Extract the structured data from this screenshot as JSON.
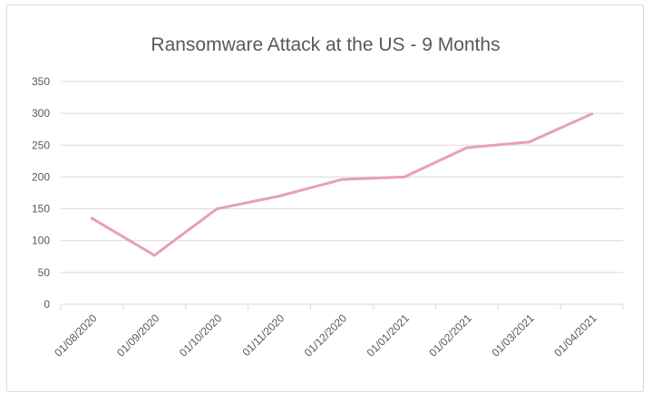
{
  "chart_data": {
    "type": "line",
    "title": "Ransomware Attack at the US - 9 Months",
    "xlabel": "",
    "ylabel": "",
    "categories": [
      "01/08/2020",
      "01/09/2020",
      "01/10/2020",
      "01/11/2020",
      "01/12/2020",
      "01/01/2021",
      "01/02/2021",
      "01/03/2021",
      "01/04/2021"
    ],
    "series": [
      {
        "values": [
          135,
          77,
          150,
          170,
          196,
          200,
          246,
          255,
          299
        ],
        "color": "#e8a0b4"
      }
    ],
    "ylim": [
      0,
      350
    ],
    "yticks": [
      0,
      50,
      100,
      150,
      200,
      250,
      300,
      350
    ],
    "grid": true,
    "legend": "none"
  }
}
